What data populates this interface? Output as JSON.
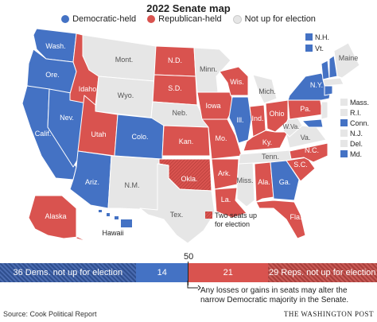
{
  "title": "2022 Senate map",
  "legend": {
    "dem": "Democratic-held",
    "rep": "Republican-held",
    "none": "Not up for election"
  },
  "colors": {
    "dem": "#4472c4",
    "rep": "#d9534f",
    "none": "#e6e6e6",
    "dem_hatch": "#33539a",
    "rep_hatch": "#b53e3a"
  },
  "states": {
    "wash": "Wash.",
    "ore": "Ore.",
    "calif": "Calif.",
    "nev": "Nev.",
    "idaho": "Idaho",
    "utah": "Utah",
    "ariz": "Ariz.",
    "mont": "Mont.",
    "wyo": "Wyo.",
    "colo": "Colo.",
    "nm": "N.M.",
    "nd": "N.D.",
    "sd": "S.D.",
    "neb": "Neb.",
    "kan": "Kan.",
    "okla": "Okla.",
    "tex": "Tex.",
    "minn": "Minn.",
    "iowa": "Iowa",
    "mo": "Mo.",
    "ark": "Ark.",
    "la": "La.",
    "wis": "Wis.",
    "ill": "Ill.",
    "miss": "Miss.",
    "mich": "Mich.",
    "ind": "Ind.",
    "ohio": "Ohio",
    "ky": "Ky.",
    "tenn": "Tenn.",
    "ala": "Ala.",
    "ga": "Ga.",
    "fla": "Fla.",
    "sc": "S.C.",
    "nc": "N.C.",
    "va": "Va.",
    "wva": "W.Va.",
    "pa": "Pa.",
    "ny": "N.Y.",
    "maine": "Maine",
    "alaska": "Alaska",
    "hawaii": "Hawaii"
  },
  "northeast": {
    "nh": "N.H.",
    "vt": "Vt.",
    "mass": "Mass.",
    "ri": "R.I.",
    "conn": "Conn.",
    "nj": "N.J.",
    "del": "Del.",
    "md": "Md."
  },
  "two_seats": "Two seats up for election",
  "bar": {
    "fifty": "50",
    "dem_not_up": "36 Dems. not up for election",
    "dem_up": "14",
    "rep_up": "21",
    "rep_not_up": "29 Reps. not up for election",
    "dem_not_up_value": 36,
    "dem_up_value": 14,
    "rep_up_value": 21,
    "rep_not_up_value": 29
  },
  "note": "Any losses or gains in seats may alter the narrow Democratic majority in the Senate.",
  "source": "Source: Cook Political Report",
  "credit": "THE WASHINGTON POST"
}
